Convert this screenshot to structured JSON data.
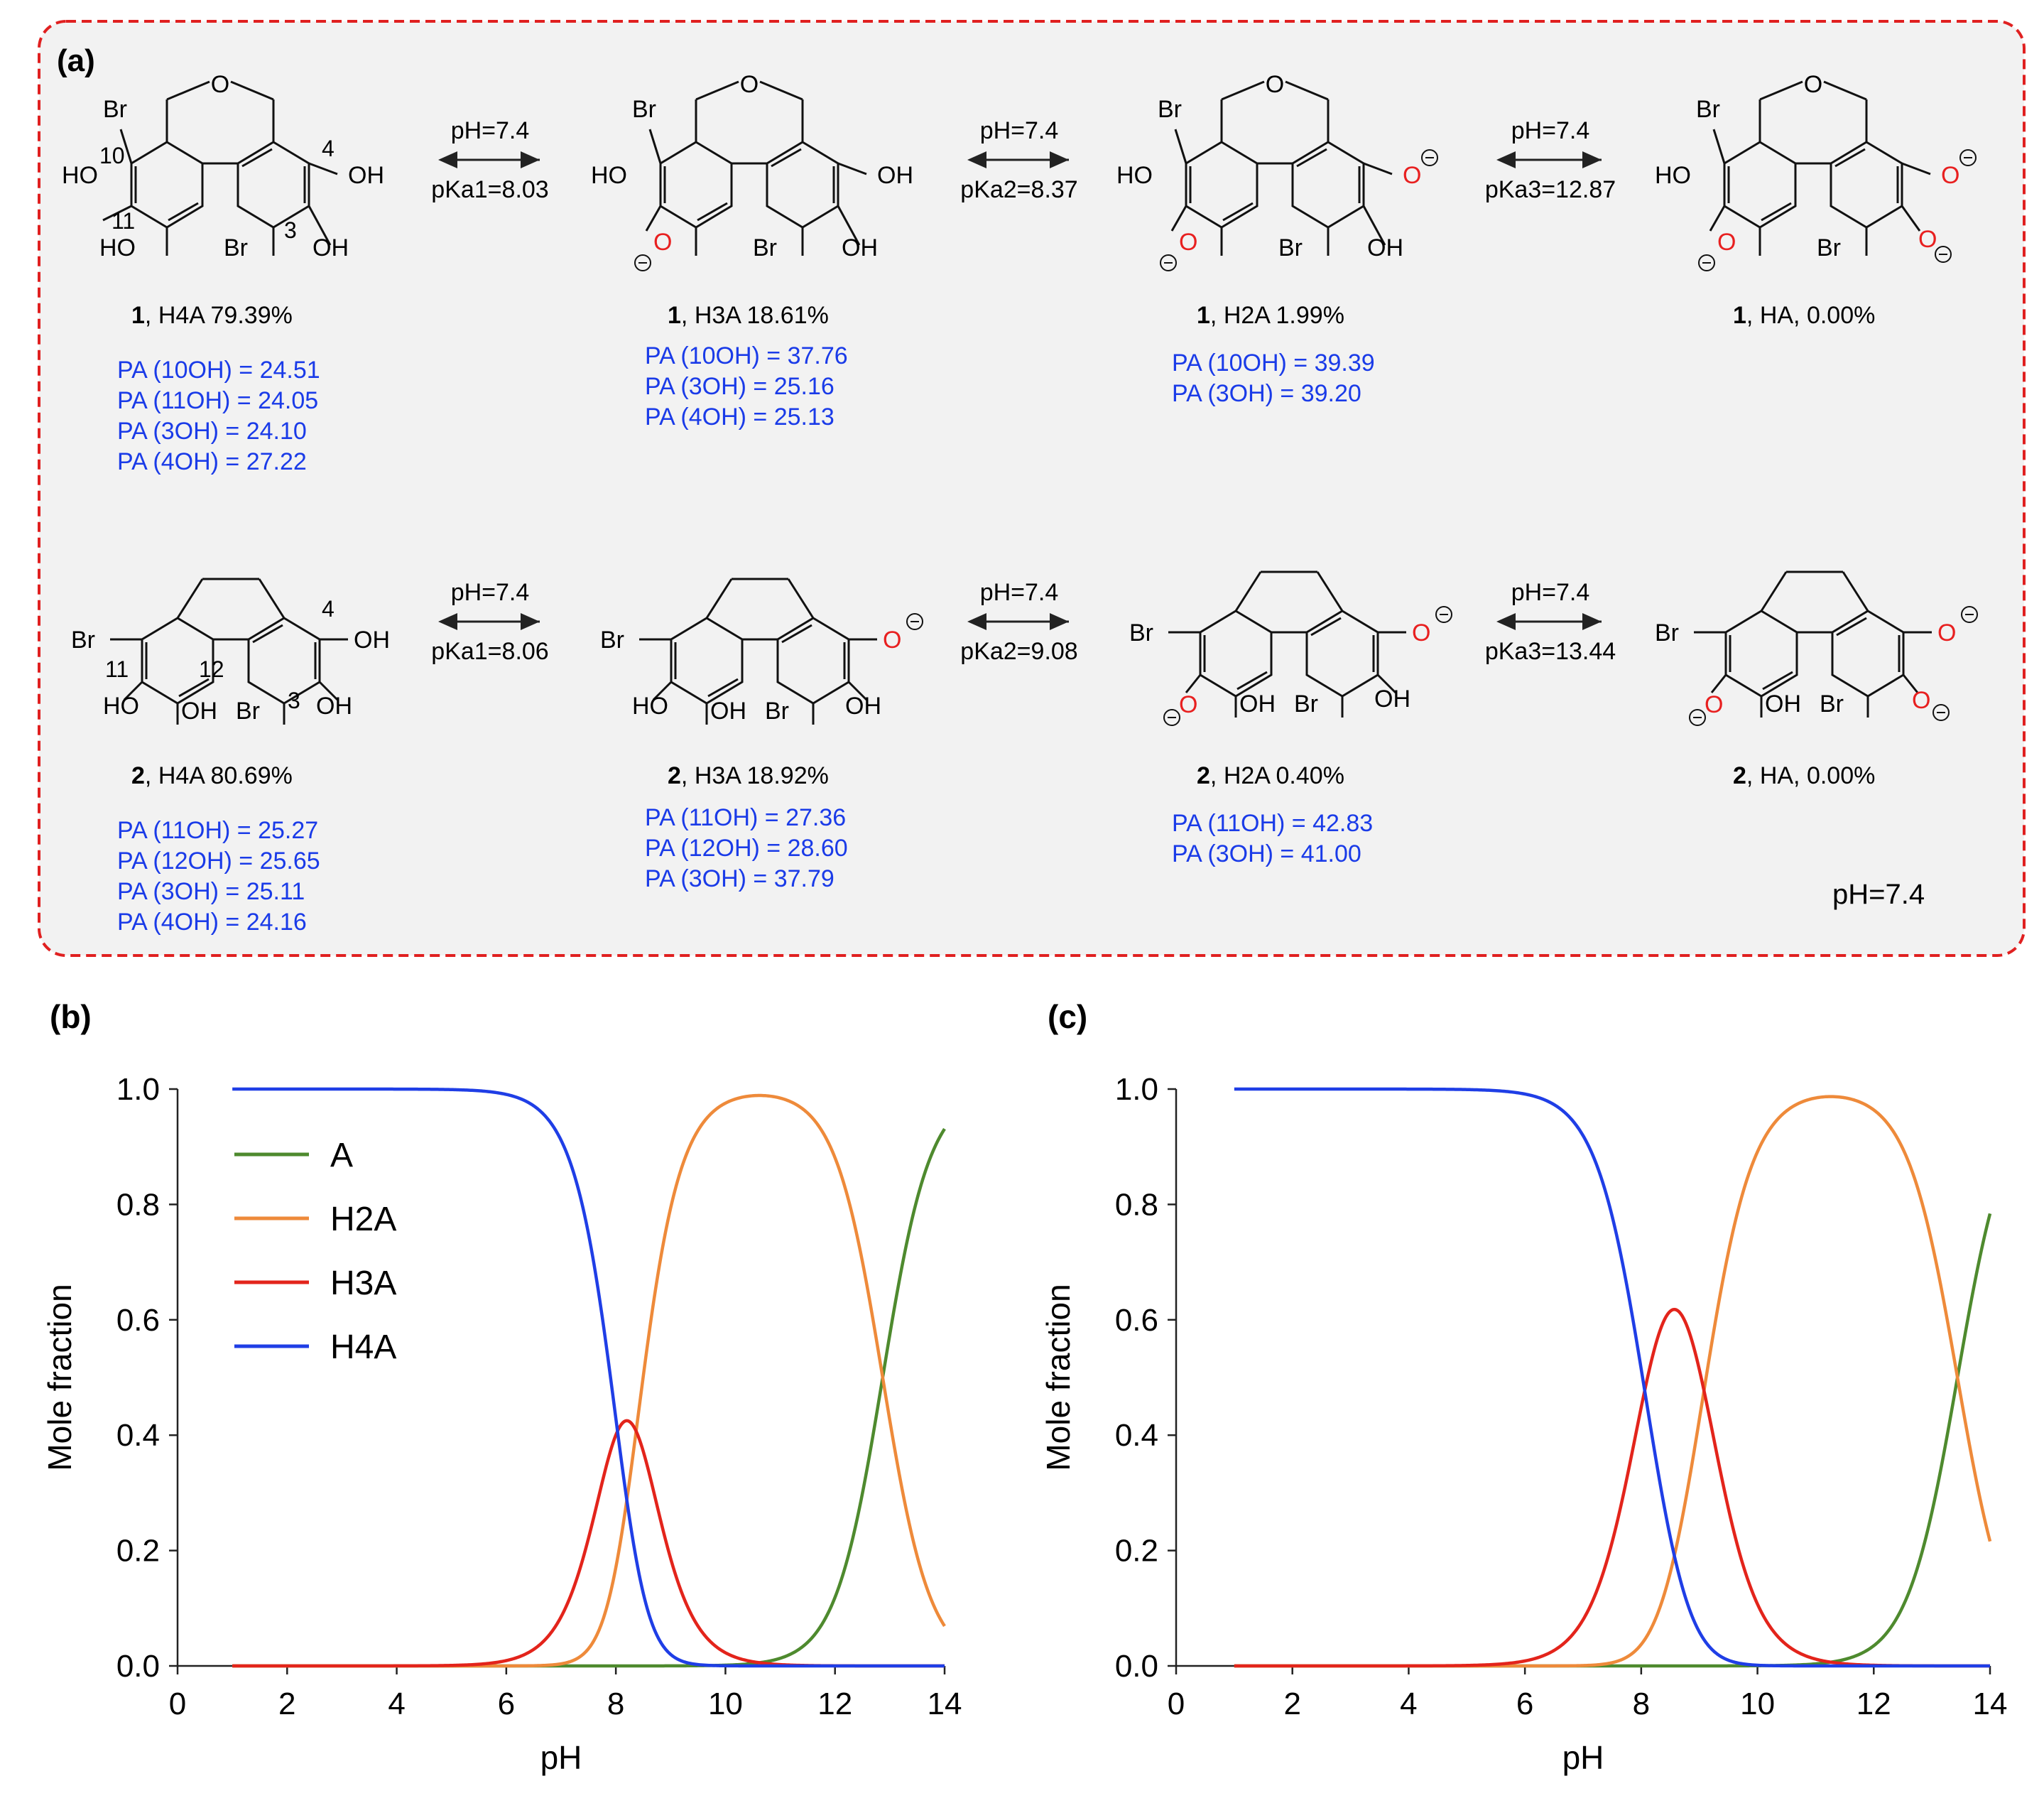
{
  "panel_a": {
    "label": "(a)",
    "ph_note": "pH=7.4",
    "rows": [
      {
        "compound": "1",
        "equilibria": [
          {
            "ph": "pH=7.4",
            "pka": "pKa1=8.03"
          },
          {
            "ph": "pH=7.4",
            "pka": "pKa2=8.37"
          },
          {
            "ph": "pH=7.4",
            "pka": "pKa3=12.87"
          }
        ],
        "species": [
          {
            "num": "1",
            "caption": ", H4A 79.39%",
            "pa": [
              "PA (10OH) = 24.51",
              "PA (11OH) = 24.05",
              "PA (3OH) = 24.10",
              "PA (4OH) = 27.22"
            ],
            "labels": {
              "br_top": "Br",
              "br_bottom": "Br",
              "pos10": "10",
              "pos11": "11",
              "pos3": "3",
              "pos4": "4",
              "oh_a": "HO",
              "oh_b": "HO",
              "oh_c": "OH",
              "oh_d": "OH",
              "ring_o": "O"
            }
          },
          {
            "num": "1",
            "caption": ", H3A 18.61%",
            "pa": [
              "PA (10OH) = 37.76",
              "PA (3OH) = 25.16",
              "PA (4OH) = 25.13"
            ],
            "labels": {
              "br_top": "Br",
              "br_bottom": "Br",
              "oh_a": "HO",
              "oh_c": "OH",
              "oh_d": "OH",
              "ring_o": "O",
              "anion_o": "O"
            }
          },
          {
            "num": "1",
            "caption": ", H2A 1.99%",
            "pa": [
              "PA (10OH) = 39.39",
              "PA (3OH) = 39.20"
            ],
            "labels": {
              "br_top": "Br",
              "br_bottom": "Br",
              "oh_a": "HO",
              "oh_d": "OH",
              "ring_o": "O",
              "anion_o": "O"
            }
          },
          {
            "num": "1",
            "caption": ", HA, 0.00%",
            "pa": [],
            "labels": {
              "br_top": "Br",
              "br_bottom": "Br",
              "oh_a": "HO",
              "ring_o": "O",
              "anion_o": "O"
            }
          }
        ]
      },
      {
        "compound": "2",
        "equilibria": [
          {
            "ph": "pH=7.4",
            "pka": "pKa1=8.06"
          },
          {
            "ph": "pH=7.4",
            "pka": "pKa2=9.08"
          },
          {
            "ph": "pH=7.4",
            "pka": "pKa3=13.44"
          }
        ],
        "species": [
          {
            "num": "2",
            "caption": ", H4A 80.69%",
            "pa": [
              "PA (11OH) = 25.27",
              "PA (12OH) = 25.65",
              "PA (3OH) = 25.11",
              "PA (4OH) = 24.16"
            ],
            "labels": {
              "br_left": "Br",
              "br_bottom": "Br",
              "pos11": "11",
              "pos12": "12",
              "pos3": "3",
              "pos4": "4",
              "oh_a": "HO",
              "oh_b": "OH",
              "oh_c": "OH",
              "oh_d": "OH"
            }
          },
          {
            "num": "2",
            "caption": ", H3A 18.92%",
            "pa": [
              "PA (11OH) = 27.36",
              "PA (12OH) = 28.60",
              "PA (3OH) = 37.79"
            ],
            "labels": {
              "br_left": "Br",
              "br_bottom": "Br",
              "oh_a": "HO",
              "oh_b": "OH",
              "oh_c": "OH",
              "anion_o": "O"
            }
          },
          {
            "num": "2",
            "caption": ", H2A 0.40%",
            "pa": [
              "PA (11OH) = 42.83",
              "PA (3OH) = 41.00"
            ],
            "labels": {
              "br_left": "Br",
              "br_bottom": "Br",
              "oh_b": "OH",
              "oh_c": "OH",
              "anion_o": "O"
            }
          },
          {
            "num": "2",
            "caption": ", HA, 0.00%",
            "pa": [],
            "labels": {
              "br_left": "Br",
              "br_bottom": "Br",
              "oh_b": "OH",
              "anion_o": "O"
            }
          }
        ]
      }
    ]
  },
  "chart_data": [
    {
      "type": "line",
      "panel": "(b)",
      "xlabel": "pH",
      "ylabel": "Mole fraction",
      "xlim": [
        0,
        14
      ],
      "ylim": [
        0,
        1
      ],
      "x_ticks": [
        "0",
        "2",
        "4",
        "6",
        "8",
        "10",
        "12",
        "14"
      ],
      "y_ticks": [
        "0.0",
        "0.2",
        "0.4",
        "0.6",
        "0.8",
        "1.0"
      ],
      "pka": [
        8.03,
        8.37,
        12.87
      ],
      "x_range": [
        1,
        14
      ],
      "legend": {
        "position": "top-left",
        "entries": [
          "A",
          "H2A",
          "H3A",
          "H4A"
        ]
      },
      "series": [
        {
          "name": "A",
          "color": "#4e8a2e"
        },
        {
          "name": "H2A",
          "color": "#ee8a3a"
        },
        {
          "name": "H3A",
          "color": "#e3241b"
        },
        {
          "name": "H4A",
          "color": "#1f3ee6"
        }
      ]
    },
    {
      "type": "line",
      "panel": "(c)",
      "xlabel": "pH",
      "ylabel": "Mole fraction",
      "xlim": [
        0,
        14
      ],
      "ylim": [
        0,
        1
      ],
      "x_ticks": [
        "0",
        "2",
        "4",
        "6",
        "8",
        "10",
        "12",
        "14"
      ],
      "y_ticks": [
        "0.0",
        "0.2",
        "0.4",
        "0.6",
        "0.8",
        "1.0"
      ],
      "pka": [
        8.06,
        9.08,
        13.44
      ],
      "x_range": [
        1,
        14
      ],
      "series": [
        {
          "name": "A",
          "color": "#4e8a2e"
        },
        {
          "name": "H2A",
          "color": "#ee8a3a"
        },
        {
          "name": "H3A",
          "color": "#e3241b"
        },
        {
          "name": "H4A",
          "color": "#1f3ee6"
        }
      ]
    }
  ],
  "colors": {
    "pa_text": "#1a3be8",
    "anion": "#e82020",
    "frame": "#e02020",
    "panel_bg": "#f2f2f2"
  }
}
